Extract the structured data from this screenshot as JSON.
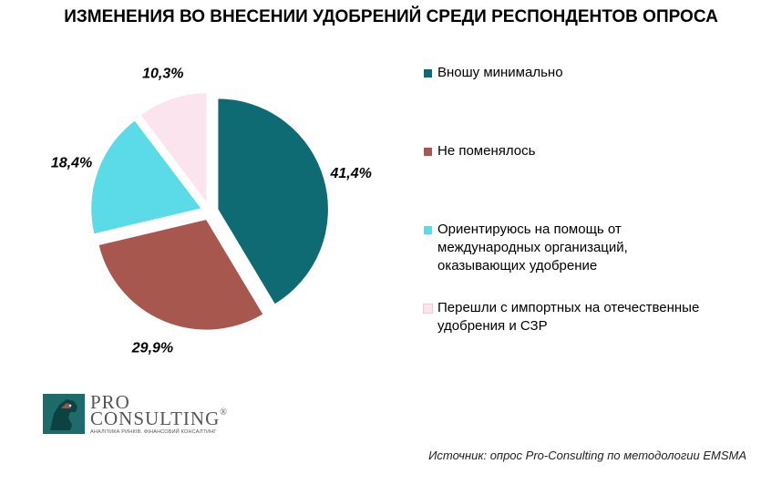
{
  "title": "ИЗМЕНЕНИЯ ВО ВНЕСЕНИИ УДОБРЕНИЙ СРЕДИ РЕСПОНДЕНТОВ ОПРОСА",
  "chart_data": {
    "type": "pie",
    "title": "ИЗМЕНЕНИЯ ВО ВНЕСЕНИИ УДОБРЕНИЙ СРЕДИ РЕСПОНДЕНТОВ ОПРОСА",
    "categories": [
      "Вношу минимально",
      "Не поменялось",
      "Ориентируюсь на помощь от международных организаций, оказывающих удобрение",
      "Перешли с импортных на отечественные удобрения и СЗР"
    ],
    "values": [
      41.4,
      29.9,
      18.4,
      10.3
    ],
    "labels": [
      "41,4%",
      "29,9%",
      "18,4%",
      "10,3%"
    ],
    "colors": [
      "#0f6b73",
      "#a8574f",
      "#5bdbe8",
      "#fce4ef"
    ],
    "legend_position": "right",
    "exploded": true
  },
  "legend": {
    "items": [
      {
        "lines": [
          "Вношу минимально"
        ]
      },
      {
        "lines": [
          "Не поменялось"
        ]
      },
      {
        "lines": [
          "Ориентируюсь на помощь от",
          "международных организаций,",
          "оказывающих удобрение"
        ]
      },
      {
        "lines": [
          "Перешли с импортных на отечественные",
          "удобрения и СЗР"
        ]
      }
    ]
  },
  "logo": {
    "pro": "PRO",
    "consulting": "CONSULTING",
    "tagline": "АНАЛІТИКА РИНКІВ. ФІНАНСОВИЙ КОНСАЛТИНГ",
    "mark": "®"
  },
  "source": "Источник: опрос Pro-Consulting по методологии EMSMA"
}
